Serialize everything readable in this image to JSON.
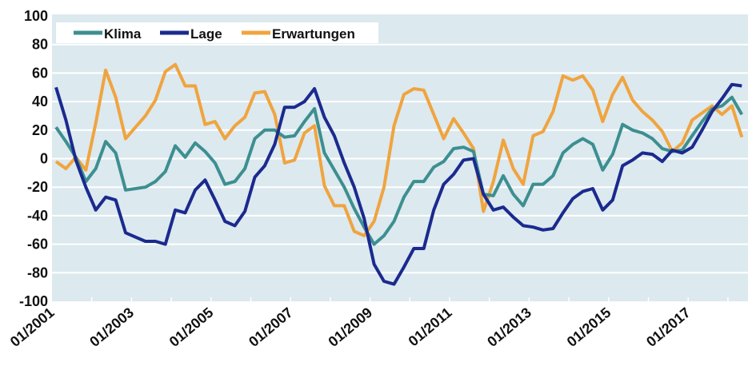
{
  "chart_data": {
    "type": "line",
    "title": "",
    "xlabel": "",
    "ylabel": "",
    "ylim": [
      -100,
      100
    ],
    "yticks": [
      100,
      80,
      60,
      40,
      20,
      0,
      -20,
      -40,
      -60,
      -80,
      -100
    ],
    "xtick_labels": [
      "01/2001",
      "01/2003",
      "01/2005",
      "01/2007",
      "01/2009",
      "01/2011",
      "01/2013",
      "01/2015",
      "01/2017"
    ],
    "x_start": "01/2001",
    "x_frequency": "quarterly",
    "grid": true,
    "legend_position": "top-left",
    "background_color": "#dce9ef",
    "series": [
      {
        "name": "Klima",
        "color": "#3d8f90",
        "values": [
          22,
          12,
          1,
          -16,
          -7,
          12,
          4,
          -22,
          -21,
          -20,
          -16,
          -9,
          9,
          1,
          11,
          5,
          -3,
          -18,
          -16,
          -7,
          14,
          20,
          20,
          15,
          16,
          26,
          35,
          4,
          -8,
          -20,
          -35,
          -48,
          -60,
          -54,
          -44,
          -27,
          -16,
          -16,
          -6,
          -2,
          7,
          8,
          5,
          -25,
          -26,
          -12,
          -25,
          -33,
          -18,
          -18,
          -12,
          4,
          10,
          14,
          10,
          -8,
          3,
          24,
          20,
          18,
          14,
          7,
          5,
          6,
          16,
          26,
          35,
          37,
          43,
          31
        ]
      },
      {
        "name": "Lage",
        "color": "#1b2a8e",
        "values": [
          50,
          27,
          -1,
          -20,
          -36,
          -27,
          -29,
          -52,
          -55,
          -58,
          -58,
          -60,
          -36,
          -38,
          -22,
          -15,
          -29,
          -44,
          -47,
          -37,
          -13,
          -5,
          10,
          36,
          36,
          40,
          49,
          29,
          16,
          -3,
          -20,
          -42,
          -74,
          -86,
          -88,
          -76,
          -63,
          -63,
          -36,
          -18,
          -11,
          -1,
          0,
          -25,
          -36,
          -34,
          -41,
          -47,
          -48,
          -50,
          -49,
          -38,
          -28,
          -23,
          -21,
          -36,
          -29,
          -5,
          -1,
          4,
          3,
          -2,
          6,
          4,
          8,
          20,
          33,
          42,
          52,
          51
        ]
      },
      {
        "name": "Erwartungen",
        "color": "#f0a43f",
        "values": [
          -2,
          -7,
          1,
          -8,
          25,
          62,
          43,
          14,
          22,
          30,
          41,
          61,
          66,
          51,
          51,
          24,
          26,
          14,
          23,
          29,
          46,
          47,
          31,
          -3,
          -1,
          18,
          23,
          -19,
          -33,
          -33,
          -51,
          -54,
          -44,
          -20,
          23,
          45,
          49,
          48,
          31,
          14,
          28,
          18,
          7,
          -37,
          -16,
          13,
          -7,
          -18,
          16,
          19,
          33,
          58,
          55,
          58,
          48,
          26,
          45,
          57,
          41,
          33,
          27,
          19,
          5,
          11,
          27,
          32,
          37,
          31,
          37,
          15
        ]
      }
    ]
  }
}
